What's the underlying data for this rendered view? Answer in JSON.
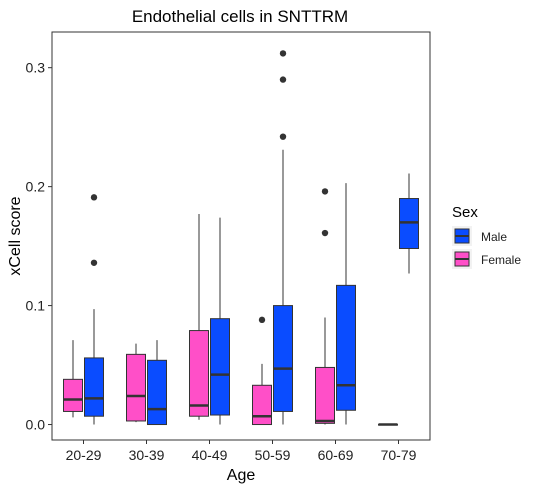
{
  "chart_data": {
    "type": "boxplot",
    "title": "Endothelial cells in SNTTRM",
    "xlabel": "Age",
    "ylabel": "xCell score",
    "categories": [
      "20-29",
      "30-39",
      "40-49",
      "50-59",
      "60-69",
      "70-79"
    ],
    "ylim": [
      -0.013,
      0.33
    ],
    "yticks": [
      0.0,
      0.1,
      0.2,
      0.3
    ],
    "ytick_labels": [
      "0.0",
      "0.1",
      "0.2",
      "0.3"
    ],
    "grid": false,
    "legend": {
      "title": "Sex",
      "placement": "right",
      "entries": [
        {
          "name": "Male",
          "color": "#0a4cff"
        },
        {
          "name": "Female",
          "color": "#ff4fc8"
        }
      ]
    },
    "series": [
      {
        "name": "Female",
        "color": "#ff4fc8",
        "boxes": [
          {
            "category": "20-29",
            "whisker_low": 0.006,
            "q1": 0.011,
            "median": 0.021,
            "q3": 0.038,
            "whisker_high": 0.071,
            "outliers": []
          },
          {
            "category": "30-39",
            "whisker_low": 0.002,
            "q1": 0.003,
            "median": 0.024,
            "q3": 0.059,
            "whisker_high": 0.068,
            "outliers": []
          },
          {
            "category": "40-49",
            "whisker_low": 0.004,
            "q1": 0.007,
            "median": 0.016,
            "q3": 0.079,
            "whisker_high": 0.177,
            "outliers": []
          },
          {
            "category": "50-59",
            "whisker_low": 0.0,
            "q1": 0.0,
            "median": 0.007,
            "q3": 0.033,
            "whisker_high": 0.051,
            "outliers": [
              0.088
            ]
          },
          {
            "category": "60-69",
            "whisker_low": 0.0,
            "q1": 0.001,
            "median": 0.003,
            "q3": 0.048,
            "whisker_high": 0.09,
            "outliers": [
              0.161,
              0.196
            ]
          },
          {
            "category": "70-79",
            "whisker_low": 0.0,
            "q1": 0.0,
            "median": 0.0,
            "q3": 0.0,
            "whisker_high": 0.0,
            "outliers": []
          }
        ]
      },
      {
        "name": "Male",
        "color": "#0a4cff",
        "boxes": [
          {
            "category": "20-29",
            "whisker_low": 0.0,
            "q1": 0.007,
            "median": 0.022,
            "q3": 0.056,
            "whisker_high": 0.097,
            "outliers": [
              0.136,
              0.191
            ]
          },
          {
            "category": "30-39",
            "whisker_low": 0.0,
            "q1": 0.0,
            "median": 0.013,
            "q3": 0.054,
            "whisker_high": 0.071,
            "outliers": []
          },
          {
            "category": "40-49",
            "whisker_low": 0.0,
            "q1": 0.008,
            "median": 0.042,
            "q3": 0.089,
            "whisker_high": 0.174,
            "outliers": []
          },
          {
            "category": "50-59",
            "whisker_low": 0.0,
            "q1": 0.011,
            "median": 0.047,
            "q3": 0.1,
            "whisker_high": 0.231,
            "outliers": [
              0.242,
              0.29,
              0.312
            ]
          },
          {
            "category": "60-69",
            "whisker_low": 0.0,
            "q1": 0.012,
            "median": 0.033,
            "q3": 0.117,
            "whisker_high": 0.203,
            "outliers": []
          },
          {
            "category": "70-79",
            "whisker_low": 0.127,
            "q1": 0.148,
            "median": 0.17,
            "q3": 0.19,
            "whisker_high": 0.211,
            "outliers": []
          }
        ]
      }
    ]
  }
}
